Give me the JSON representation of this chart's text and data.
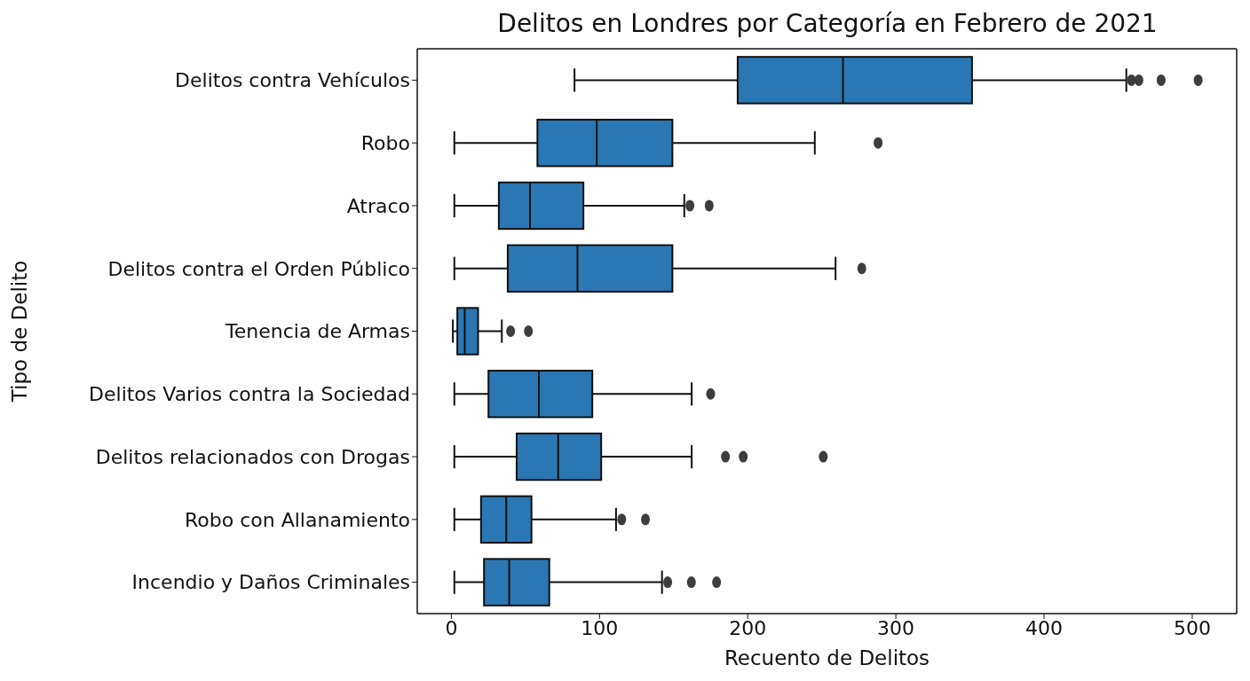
{
  "chart_data": {
    "type": "box",
    "orientation": "horizontal",
    "title": "Delitos en Londres por Categoría en Febrero de 2021",
    "xlabel": "Recuento de Delitos",
    "ylabel": "Tipo de Delito",
    "categories": [
      "Delitos contra Vehículos",
      "Robo",
      "Atraco",
      "Delitos contra el Orden Público",
      "Tenencia de Armas",
      "Delitos Varios contra la Sociedad",
      "Delitos relacionados con Drogas",
      "Robo con Allanamiento",
      "Incendio y Daños Criminales"
    ],
    "color": "#2a77b4",
    "boxes": [
      {
        "low": 83,
        "q1": 193,
        "median": 264,
        "q3": 351,
        "high": 455,
        "outliers": [
          459,
          464,
          479,
          504
        ]
      },
      {
        "low": 2,
        "q1": 58,
        "median": 98,
        "q3": 149,
        "high": 245,
        "outliers": [
          288
        ]
      },
      {
        "low": 2,
        "q1": 32,
        "median": 53,
        "q3": 89,
        "high": 157,
        "outliers": [
          161,
          174
        ]
      },
      {
        "low": 2,
        "q1": 38,
        "median": 85,
        "q3": 149,
        "high": 259,
        "outliers": [
          277
        ]
      },
      {
        "low": 1,
        "q1": 4,
        "median": 9,
        "q3": 18,
        "high": 34,
        "outliers": [
          40,
          52
        ]
      },
      {
        "low": 2,
        "q1": 25,
        "median": 59,
        "q3": 95,
        "high": 162,
        "outliers": [
          175
        ]
      },
      {
        "low": 2,
        "q1": 44,
        "median": 72,
        "q3": 101,
        "high": 162,
        "outliers": [
          185,
          197,
          251
        ]
      },
      {
        "low": 2,
        "q1": 20,
        "median": 37,
        "q3": 54,
        "high": 111,
        "outliers": [
          115,
          131
        ]
      },
      {
        "low": 2,
        "q1": 22,
        "median": 39,
        "q3": 66,
        "high": 142,
        "outliers": [
          146,
          162,
          179
        ]
      }
    ],
    "xlim": [
      -23,
      530
    ],
    "xticks": [
      0,
      100,
      200,
      300,
      400,
      500
    ]
  }
}
